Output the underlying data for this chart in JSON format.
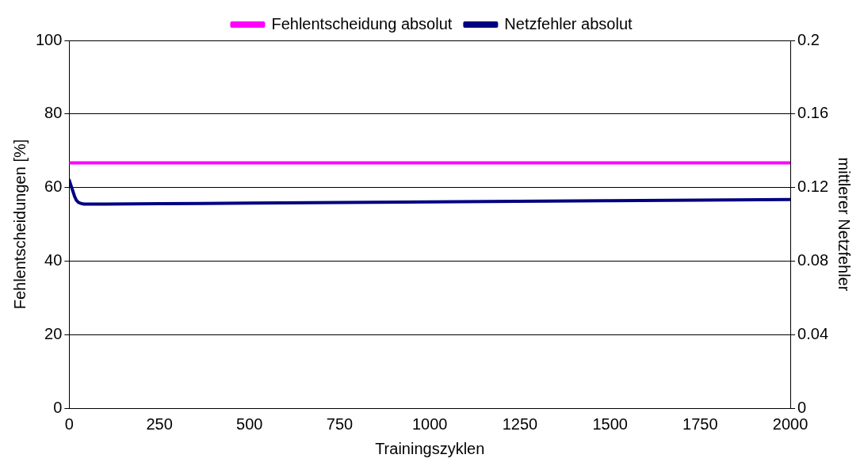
{
  "chart_data": {
    "type": "line",
    "xlabel": "Trainingszyklen",
    "ylabel": "Fehlentscheidungen [%]",
    "y2label": "mittlerer Netzfehler",
    "xlim": [
      0,
      2000
    ],
    "xticks": [
      0,
      250,
      500,
      750,
      1000,
      1250,
      1500,
      1750,
      2000
    ],
    "ylim": [
      0,
      100
    ],
    "yticks": [
      0,
      20,
      40,
      60,
      80,
      100
    ],
    "y2lim": [
      0,
      0.2
    ],
    "y2ticks": [
      0,
      0.04,
      0.08,
      0.12,
      0.16,
      0.2
    ],
    "grid": "y",
    "legend": "top",
    "marker": "none",
    "line_style": "solid",
    "series": [
      {
        "name": "Fehlentscheidung absolut",
        "color": "#ff00ff",
        "x": [
          0,
          2000
        ],
        "values": [
          66.7,
          66.7
        ]
      },
      {
        "name": "Netzfehler absolut",
        "color": "#000080",
        "axis": "y2",
        "x": [
          0,
          5,
          10,
          15,
          20,
          25,
          30,
          40,
          60,
          100,
          250,
          500,
          1000,
          1500,
          2000
        ],
        "values": [
          0.124,
          0.121,
          0.118,
          0.115,
          0.113,
          0.112,
          0.1115,
          0.111,
          0.111,
          0.111,
          0.1112,
          0.1115,
          0.1122,
          0.1128,
          0.1135
        ]
      }
    ]
  }
}
